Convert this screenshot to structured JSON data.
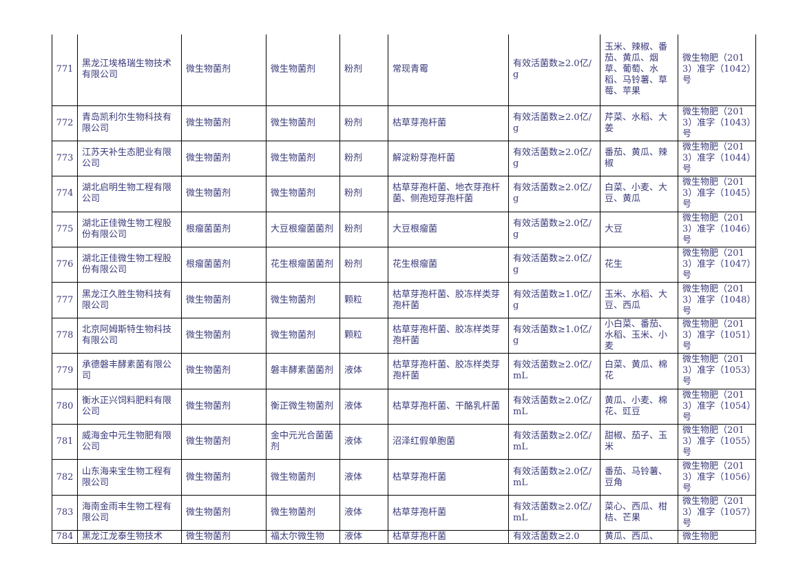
{
  "rows": [
    {
      "no": "771",
      "company": "黑龙江埃格瑞生物技术有限公司",
      "category": "微生物菌剂",
      "product": "微生物菌剂",
      "form": "粉剂",
      "strain": "常现青霉",
      "content": "有效活菌数≥2.0亿/g",
      "crops": "玉米、辣椒、番茄、黄瓜、烟草、葡萄、水稻、马铃薯、草莓、苹果",
      "reg": "微生物肥（2013）准字（1042）号"
    },
    {
      "no": "772",
      "company": "青岛凯利尔生物科技有限公司",
      "category": "微生物菌剂",
      "product": "微生物菌剂",
      "form": "粉剂",
      "strain": "枯草芽孢杆菌",
      "content": "有效活菌数≥2.0亿/g",
      "crops": "芹菜、水稻、大姜",
      "reg": "微生物肥（2013）准字（1043）号"
    },
    {
      "no": "773",
      "company": "江苏天补生态肥业有限公司",
      "category": "微生物菌剂",
      "product": "微生物菌剂",
      "form": "粉剂",
      "strain": "解淀粉芽孢杆菌",
      "content": "有效活菌数≥2.0亿/g",
      "crops": "番茄、黄瓜、辣椒",
      "reg": "微生物肥（2013）准字（1044）号"
    },
    {
      "no": "774",
      "company": "湖北启明生物工程有限公司",
      "category": "微生物菌剂",
      "product": "微生物菌剂",
      "form": "粉剂",
      "strain": "枯草芽孢杆菌、地衣芽孢杆菌、侧孢短芽孢杆菌",
      "content": "有效活菌数≥2.0亿/g",
      "crops": "白菜、小麦、大豆、黄瓜",
      "reg": "微生物肥（2013）准字（1045）号"
    },
    {
      "no": "775",
      "company": "湖北正佳微生物工程股份有限公司",
      "category": "根瘤菌菌剂",
      "product": "大豆根瘤菌菌剂",
      "form": "粉剂",
      "strain": "大豆根瘤菌",
      "content": "有效活菌数≥2.0亿/g",
      "crops": "大豆",
      "reg": "微生物肥（2013）准字（1046）号"
    },
    {
      "no": "776",
      "company": "湖北正佳微生物工程股份有限公司",
      "category": "根瘤菌菌剂",
      "product": "花生根瘤菌菌剂",
      "form": "粉剂",
      "strain": "花生根瘤菌",
      "content": "有效活菌数≥2.0亿/g",
      "crops": "花生",
      "reg": "微生物肥（2013）准字（1047）号"
    },
    {
      "no": "777",
      "company": "黑龙江久胜生物科技有限公司",
      "category": "微生物菌剂",
      "product": "微生物菌剂",
      "form": "颗粒",
      "strain": "枯草芽孢杆菌、胶冻样类芽孢杆菌",
      "content": "有效活菌数≥1.0亿/g",
      "crops": "玉米、水稻、大豆、西瓜",
      "reg": "微生物肥（2013）准字（1048）号"
    },
    {
      "no": "778",
      "company": "北京阿姆斯特生物科技有限公司",
      "category": "微生物菌剂",
      "product": "微生物菌剂",
      "form": "颗粒",
      "strain": "枯草芽孢杆菌、胶冻样类芽孢杆菌",
      "content": "有效活菌数≥1.0亿/g",
      "crops": "小白菜、番茄、水稻、玉米、小麦",
      "reg": "微生物肥（2013）准字（1051）号"
    },
    {
      "no": "779",
      "company": "承德磐丰酵素菌有限公司",
      "category": "微生物菌剂",
      "product": "磐丰酵素菌菌剂",
      "form": "液体",
      "strain": "枯草芽孢杆菌、胶冻样类芽孢杆菌",
      "content": "有效活菌数≥2.0亿/mL",
      "crops": "白菜、黄瓜、棉花",
      "reg": "微生物肥（2013）准字（1053）号"
    },
    {
      "no": "780",
      "company": "衡水正兴饲料肥料有限公司",
      "category": "微生物菌剂",
      "product": "衡正微生物菌剂",
      "form": "液体",
      "strain": "枯草芽孢杆菌、干酪乳杆菌",
      "content": "有效活菌数≥2.0亿/mL",
      "crops": "黄瓜、小麦、棉花、豇豆",
      "reg": "微生物肥（2013）准字（1054）号"
    },
    {
      "no": "781",
      "company": "威海金中元生物肥有限公司",
      "category": "微生物菌剂",
      "product": "金中元光合菌菌剂",
      "form": "液体",
      "strain": "沼泽红假单胞菌",
      "content": "有效活菌数≥2.0亿/mL",
      "crops": "甜椒、茄子、玉米",
      "reg": "微生物肥（2013）准字（1055）号"
    },
    {
      "no": "782",
      "company": "山东海来宝生物工程有限公司",
      "category": "微生物菌剂",
      "product": "微生物菌剂",
      "form": "液体",
      "strain": "枯草芽孢杆菌",
      "content": "有效活菌数≥2.0亿/mL",
      "crops": "番茄、马铃薯、豆角",
      "reg": "微生物肥（2013）准字（1056）号"
    },
    {
      "no": "783",
      "company": "海南金雨丰生物工程有限公司",
      "category": "微生物菌剂",
      "product": "微生物菌剂",
      "form": "液体",
      "strain": "枯草芽孢杆菌",
      "content": "有效活菌数≥2.0亿/mL",
      "crops": "菜心、西瓜、柑桔、芒果",
      "reg": "微生物肥（2013）准字（1057）号"
    },
    {
      "no": "784",
      "company": "黑龙江龙泰生物技术",
      "category": "微生物菌剂",
      "product": "福太尔微生物",
      "form": "液体",
      "strain": "枯草芽孢杆菌",
      "content": "有效活菌数≥2.0",
      "crops": "黄瓜、西瓜、",
      "reg": "微生物肥"
    }
  ]
}
